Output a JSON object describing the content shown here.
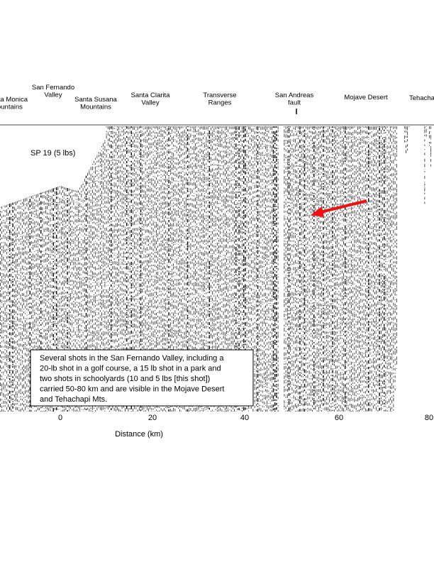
{
  "regions": [
    {
      "lines": [
        "Santa Monica",
        "Mountains"
      ]
    },
    {
      "lines": [
        "San Fernando",
        "Valley"
      ]
    },
    {
      "lines": [
        "Santa Susana",
        "Mountains"
      ]
    },
    {
      "lines": [
        "Santa Clarita",
        "Valley"
      ]
    },
    {
      "lines": [
        "Transverse",
        "Ranges"
      ]
    },
    {
      "lines": [
        "San Andreas",
        "fault"
      ]
    },
    {
      "lines": [
        "Mojave Desert"
      ]
    },
    {
      "lines": [
        "Tehachapi"
      ]
    }
  ],
  "shot_label": "SP 19 (5 lbs)",
  "annotation": [
    "Several shots in the San Fernando Valley, including a",
    "20-lb shot in a golf course, a 15 lb shot in a park and",
    "two shots in schoolyards (10 and 5 lbs [this shot])",
    "carried 50-80 km and are visible in the Mojave Desert",
    "and Tehachapi Mts."
  ],
  "x_axis": {
    "label": "Distance (km)",
    "ticks": [
      "0",
      "20",
      "40",
      "60",
      "80"
    ]
  }
}
